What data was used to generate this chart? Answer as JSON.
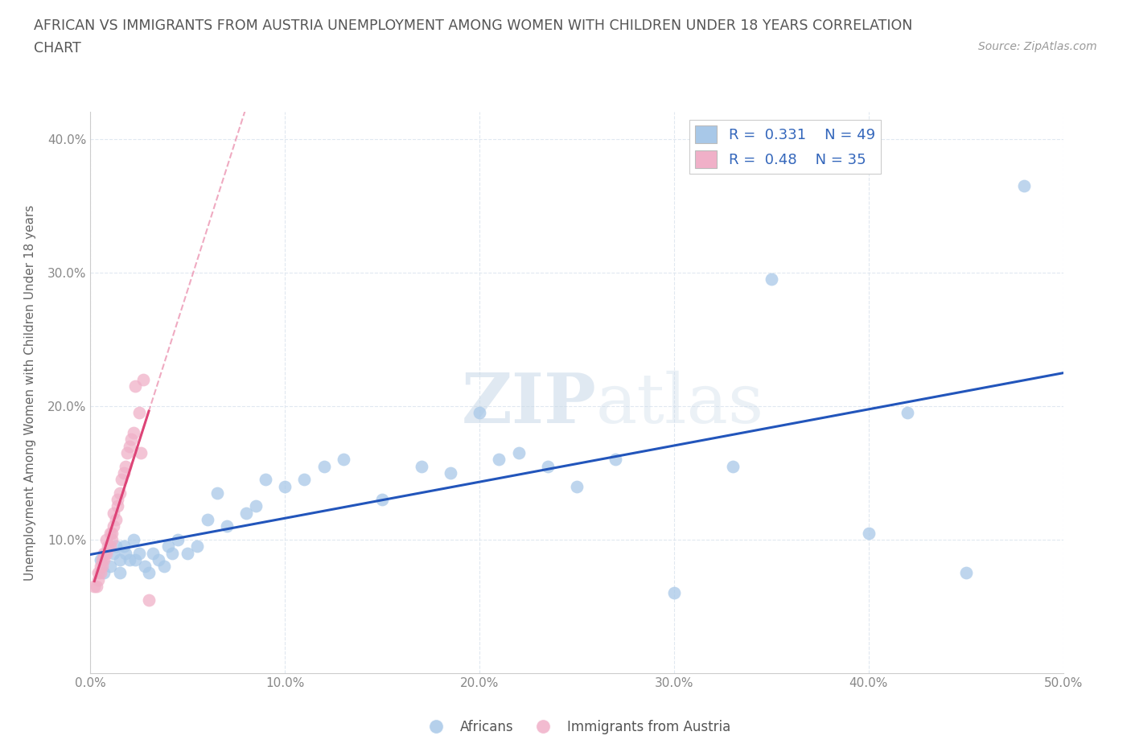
{
  "title_line1": "AFRICAN VS IMMIGRANTS FROM AUSTRIA UNEMPLOYMENT AMONG WOMEN WITH CHILDREN UNDER 18 YEARS CORRELATION",
  "title_line2": "CHART",
  "source": "Source: ZipAtlas.com",
  "ylabel": "Unemployment Among Women with Children Under 18 years",
  "xlim": [
    0.0,
    0.5
  ],
  "ylim": [
    0.0,
    0.42
  ],
  "xticks": [
    0.0,
    0.1,
    0.2,
    0.3,
    0.4,
    0.5
  ],
  "xticklabels": [
    "0.0%",
    "10.0%",
    "20.0%",
    "30.0%",
    "40.0%",
    "50.0%"
  ],
  "yticks": [
    0.1,
    0.2,
    0.3,
    0.4
  ],
  "yticklabels": [
    "10.0%",
    "20.0%",
    "30.0%",
    "40.0%"
  ],
  "africans_color": "#a8c8e8",
  "austria_color": "#f0b0c8",
  "line_blue": "#2255bb",
  "line_pink": "#dd4477",
  "legend_box_blue": "#a8c8e8",
  "legend_box_pink": "#f0b0c8",
  "R_africans": 0.331,
  "N_africans": 49,
  "R_austria": 0.48,
  "N_austria": 35,
  "africans_x": [
    0.005,
    0.007,
    0.01,
    0.012,
    0.013,
    0.015,
    0.015,
    0.017,
    0.018,
    0.02,
    0.022,
    0.023,
    0.025,
    0.028,
    0.03,
    0.032,
    0.035,
    0.038,
    0.04,
    0.042,
    0.045,
    0.05,
    0.055,
    0.06,
    0.065,
    0.07,
    0.08,
    0.085,
    0.09,
    0.1,
    0.11,
    0.12,
    0.13,
    0.15,
    0.17,
    0.185,
    0.2,
    0.21,
    0.22,
    0.235,
    0.25,
    0.27,
    0.3,
    0.33,
    0.35,
    0.4,
    0.42,
    0.45,
    0.48
  ],
  "africans_y": [
    0.085,
    0.075,
    0.08,
    0.09,
    0.095,
    0.085,
    0.075,
    0.095,
    0.09,
    0.085,
    0.1,
    0.085,
    0.09,
    0.08,
    0.075,
    0.09,
    0.085,
    0.08,
    0.095,
    0.09,
    0.1,
    0.09,
    0.095,
    0.115,
    0.135,
    0.11,
    0.12,
    0.125,
    0.145,
    0.14,
    0.145,
    0.155,
    0.16,
    0.13,
    0.155,
    0.15,
    0.195,
    0.16,
    0.165,
    0.155,
    0.14,
    0.16,
    0.06,
    0.155,
    0.295,
    0.105,
    0.195,
    0.075,
    0.365
  ],
  "austria_x": [
    0.002,
    0.003,
    0.004,
    0.004,
    0.005,
    0.005,
    0.006,
    0.006,
    0.007,
    0.007,
    0.008,
    0.008,
    0.009,
    0.01,
    0.01,
    0.011,
    0.011,
    0.012,
    0.012,
    0.013,
    0.014,
    0.014,
    0.015,
    0.016,
    0.017,
    0.018,
    0.019,
    0.02,
    0.021,
    0.022,
    0.023,
    0.025,
    0.026,
    0.027,
    0.03
  ],
  "austria_y": [
    0.065,
    0.065,
    0.07,
    0.075,
    0.075,
    0.08,
    0.08,
    0.085,
    0.085,
    0.09,
    0.09,
    0.1,
    0.095,
    0.095,
    0.105,
    0.1,
    0.105,
    0.11,
    0.12,
    0.115,
    0.125,
    0.13,
    0.135,
    0.145,
    0.15,
    0.155,
    0.165,
    0.17,
    0.175,
    0.18,
    0.215,
    0.195,
    0.165,
    0.22,
    0.055
  ],
  "watermark_zip": "ZIP",
  "watermark_atlas": "atlas",
  "background_color": "#ffffff",
  "grid_color": "#e0e8f0"
}
